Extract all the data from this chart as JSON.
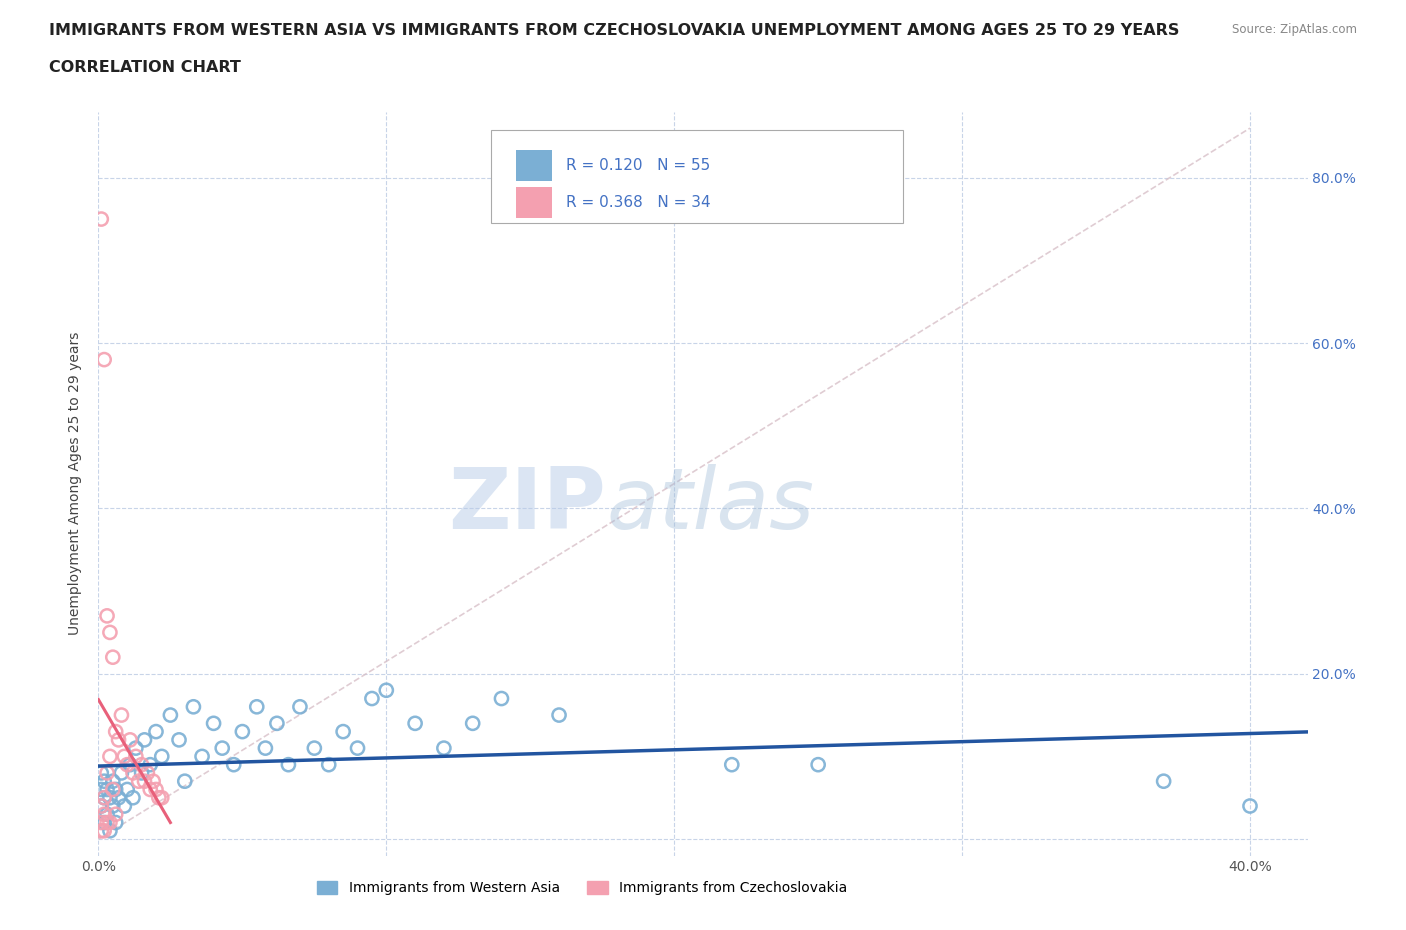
{
  "title_line1": "IMMIGRANTS FROM WESTERN ASIA VS IMMIGRANTS FROM CZECHOSLOVAKIA UNEMPLOYMENT AMONG AGES 25 TO 29 YEARS",
  "title_line2": "CORRELATION CHART",
  "source": "Source: ZipAtlas.com",
  "ylabel": "Unemployment Among Ages 25 to 29 years",
  "xlim": [
    0.0,
    0.42
  ],
  "ylim": [
    -0.02,
    0.88
  ],
  "western_asia_x": [
    0.001,
    0.001,
    0.001,
    0.002,
    0.002,
    0.002,
    0.003,
    0.003,
    0.004,
    0.004,
    0.005,
    0.005,
    0.006,
    0.006,
    0.007,
    0.008,
    0.009,
    0.01,
    0.011,
    0.012,
    0.013,
    0.015,
    0.016,
    0.018,
    0.02,
    0.022,
    0.025,
    0.028,
    0.03,
    0.033,
    0.036,
    0.04,
    0.043,
    0.047,
    0.05,
    0.055,
    0.058,
    0.062,
    0.066,
    0.07,
    0.075,
    0.08,
    0.085,
    0.09,
    0.095,
    0.1,
    0.11,
    0.12,
    0.13,
    0.14,
    0.16,
    0.22,
    0.25,
    0.37,
    0.4
  ],
  "western_asia_y": [
    0.04,
    0.06,
    0.08,
    0.02,
    0.05,
    0.07,
    0.03,
    0.06,
    0.01,
    0.05,
    0.04,
    0.07,
    0.02,
    0.06,
    0.05,
    0.08,
    0.04,
    0.06,
    0.09,
    0.05,
    0.11,
    0.08,
    0.12,
    0.09,
    0.13,
    0.1,
    0.15,
    0.12,
    0.07,
    0.16,
    0.1,
    0.14,
    0.11,
    0.09,
    0.13,
    0.16,
    0.11,
    0.14,
    0.09,
    0.16,
    0.11,
    0.09,
    0.13,
    0.11,
    0.17,
    0.18,
    0.14,
    0.11,
    0.14,
    0.17,
    0.15,
    0.09,
    0.09,
    0.07,
    0.04
  ],
  "czechoslovakia_x": [
    0.001,
    0.001,
    0.001,
    0.001,
    0.002,
    0.002,
    0.002,
    0.002,
    0.003,
    0.003,
    0.003,
    0.004,
    0.004,
    0.004,
    0.005,
    0.005,
    0.006,
    0.006,
    0.007,
    0.008,
    0.009,
    0.01,
    0.011,
    0.012,
    0.013,
    0.014,
    0.015,
    0.016,
    0.017,
    0.018,
    0.019,
    0.02,
    0.021,
    0.022
  ],
  "czechoslovakia_y": [
    0.75,
    0.04,
    0.02,
    0.01,
    0.58,
    0.05,
    0.03,
    0.01,
    0.27,
    0.08,
    0.02,
    0.25,
    0.1,
    0.02,
    0.22,
    0.06,
    0.13,
    0.03,
    0.12,
    0.15,
    0.1,
    0.09,
    0.12,
    0.08,
    0.1,
    0.07,
    0.09,
    0.07,
    0.08,
    0.06,
    0.07,
    0.06,
    0.05,
    0.05
  ],
  "western_asia_color": "#7bafd4",
  "czechoslovakia_color": "#f4a0b0",
  "western_asia_edge": "#5a9bc4",
  "czechoslovakia_edge": "#e87090",
  "western_asia_line_color": "#2255a0",
  "czechoslovakia_line_color": "#e8607a",
  "diagonal_line_color": "#d8c0c8",
  "background_color": "#ffffff",
  "watermark_zip": "ZIP",
  "watermark_atlas": "atlas",
  "legend_R1": "R = 0.120",
  "legend_N1": "N = 55",
  "legend_R2": "R = 0.368",
  "legend_N2": "N = 34",
  "series1_label": "Immigrants from Western Asia",
  "series2_label": "Immigrants from Czechoslovakia",
  "title_fontsize": 11.5,
  "axis_label_fontsize": 10,
  "tick_fontsize": 10,
  "grid_color": "#c8d4e8",
  "right_ytick_color": "#4472c4"
}
